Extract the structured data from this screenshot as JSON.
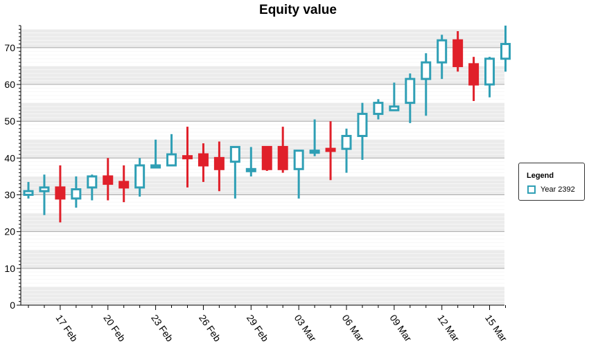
{
  "chart_data": {
    "type": "candlestick",
    "title": "Equity value",
    "xlabel": "",
    "ylabel": "",
    "ylim": [
      0,
      76
    ],
    "yticks": [
      0,
      10,
      20,
      30,
      40,
      50,
      60,
      70
    ],
    "x_tick_labels": [
      "17 Feb",
      "20 Feb",
      "23 Feb",
      "26 Feb",
      "29 Feb",
      "03 Mar",
      "06 Mar",
      "09 Mar",
      "12 Mar",
      "15 Mar"
    ],
    "x_tick_positions": [
      2,
      5,
      8,
      11,
      14,
      17,
      20,
      23,
      26,
      29
    ],
    "grid": true,
    "legend": {
      "title": "Legend",
      "placement": "right"
    },
    "up_color": "#2f9fb5",
    "down_color": "#e0202a",
    "background_band_color": "#ebebeb",
    "series": [
      {
        "name": "Year 2392",
        "open": [
          30.0,
          31.0,
          32.0,
          29.0,
          32.0,
          35.0,
          33.5,
          32.0,
          38.0,
          38.0,
          40.5,
          41.0,
          40.0,
          39.0,
          37.0,
          43.0,
          43.0,
          37.0,
          41.5,
          42.5,
          42.5,
          46.0,
          52.0,
          53.0,
          55.0,
          61.5,
          66.0,
          72.0,
          65.5,
          60.0,
          67.0
        ],
        "high": [
          33.5,
          35.5,
          38.0,
          35.0,
          35.5,
          40.0,
          38.0,
          40.0,
          45.0,
          46.5,
          48.5,
          44.0,
          44.5,
          43.0,
          43.0,
          43.0,
          48.5,
          41.5,
          50.5,
          50.0,
          48.0,
          55.0,
          56.0,
          60.5,
          63.0,
          68.5,
          73.5,
          74.5,
          67.5,
          67.5,
          76.0
        ],
        "low": [
          29.0,
          24.5,
          22.5,
          26.5,
          28.5,
          28.5,
          28.0,
          29.5,
          38.0,
          38.0,
          32.0,
          33.5,
          31.0,
          29.0,
          35.0,
          36.5,
          36.0,
          29.0,
          40.5,
          34.0,
          36.0,
          39.5,
          50.5,
          53.0,
          49.5,
          51.5,
          61.5,
          63.5,
          55.5,
          56.5,
          63.5
        ],
        "close": [
          31.0,
          32.0,
          29.0,
          31.5,
          35.0,
          33.0,
          32.0,
          38.0,
          38.0,
          41.0,
          40.0,
          38.0,
          37.0,
          43.0,
          37.0,
          37.0,
          37.0,
          42.0,
          42.0,
          42.0,
          46.0,
          52.0,
          55.0,
          54.0,
          61.5,
          66.0,
          72.0,
          65.0,
          60.0,
          67.0,
          71.0
        ]
      }
    ]
  },
  "legend": {
    "title": "Legend",
    "series_label": "Year 2392"
  }
}
